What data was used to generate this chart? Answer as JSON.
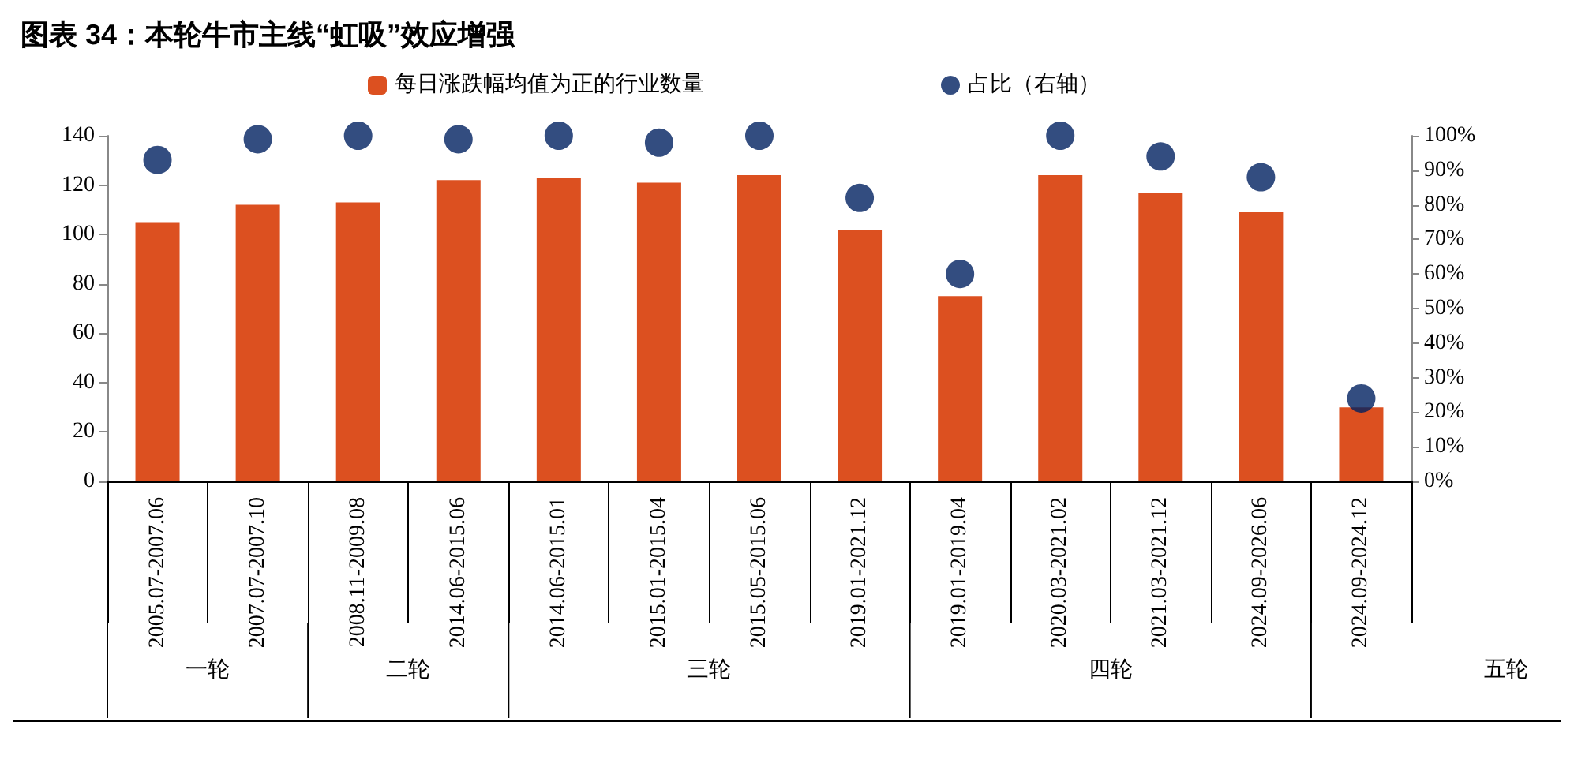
{
  "chart_data": {
    "type": "bar",
    "title": "图表 34：本轮牛市主线“虹吸”效应增强",
    "categories": [
      "2005.07-2007.06",
      "2007.07-2007.10",
      "2008.11-2009.08",
      "2014.06-2015.06",
      "2014.06-2015.01",
      "2015.01-2015.04",
      "2015.05-2015.06",
      "2019.01-2021.12",
      "2019.01-2019.04",
      "2020.03-2021.02",
      "2021.03-2021.12",
      "2024.09-2026.06",
      "2024.09-2024.12"
    ],
    "series": [
      {
        "name": "每日涨跌幅均值为正的行业数量",
        "color": "#dc5020",
        "values": [
          105,
          112,
          113,
          122,
          123,
          121,
          124,
          102,
          75,
          124,
          117,
          109,
          30
        ]
      },
      {
        "name": "占比（右轴）",
        "type": "scatter",
        "axis": "y2",
        "color": "#002060",
        "marker": "circle",
        "values": [
          93,
          99,
          100,
          99,
          100,
          98,
          100,
          82,
          60,
          100,
          94,
          88,
          24
        ]
      }
    ],
    "ylim": [
      0,
      140
    ],
    "yticks": [
      0,
      20,
      40,
      60,
      80,
      100,
      120,
      140
    ],
    "y2lim": [
      0,
      100
    ],
    "y2ticks": [
      {
        "value": 0,
        "label": "0%"
      },
      {
        "value": 10,
        "label": "10%"
      },
      {
        "value": 20,
        "label": "20%"
      },
      {
        "value": 30,
        "label": "30%"
      },
      {
        "value": 40,
        "label": "40%"
      },
      {
        "value": 50,
        "label": "50%"
      },
      {
        "value": 60,
        "label": "60%"
      },
      {
        "value": 70,
        "label": "70%"
      },
      {
        "value": 80,
        "label": "80%"
      },
      {
        "value": 90,
        "label": "90%"
      },
      {
        "value": 100,
        "label": "100%"
      }
    ],
    "legend": "top",
    "grid": false,
    "annotations": [
      "一轮",
      "二轮",
      "三轮",
      "四轮",
      "五轮"
    ]
  }
}
